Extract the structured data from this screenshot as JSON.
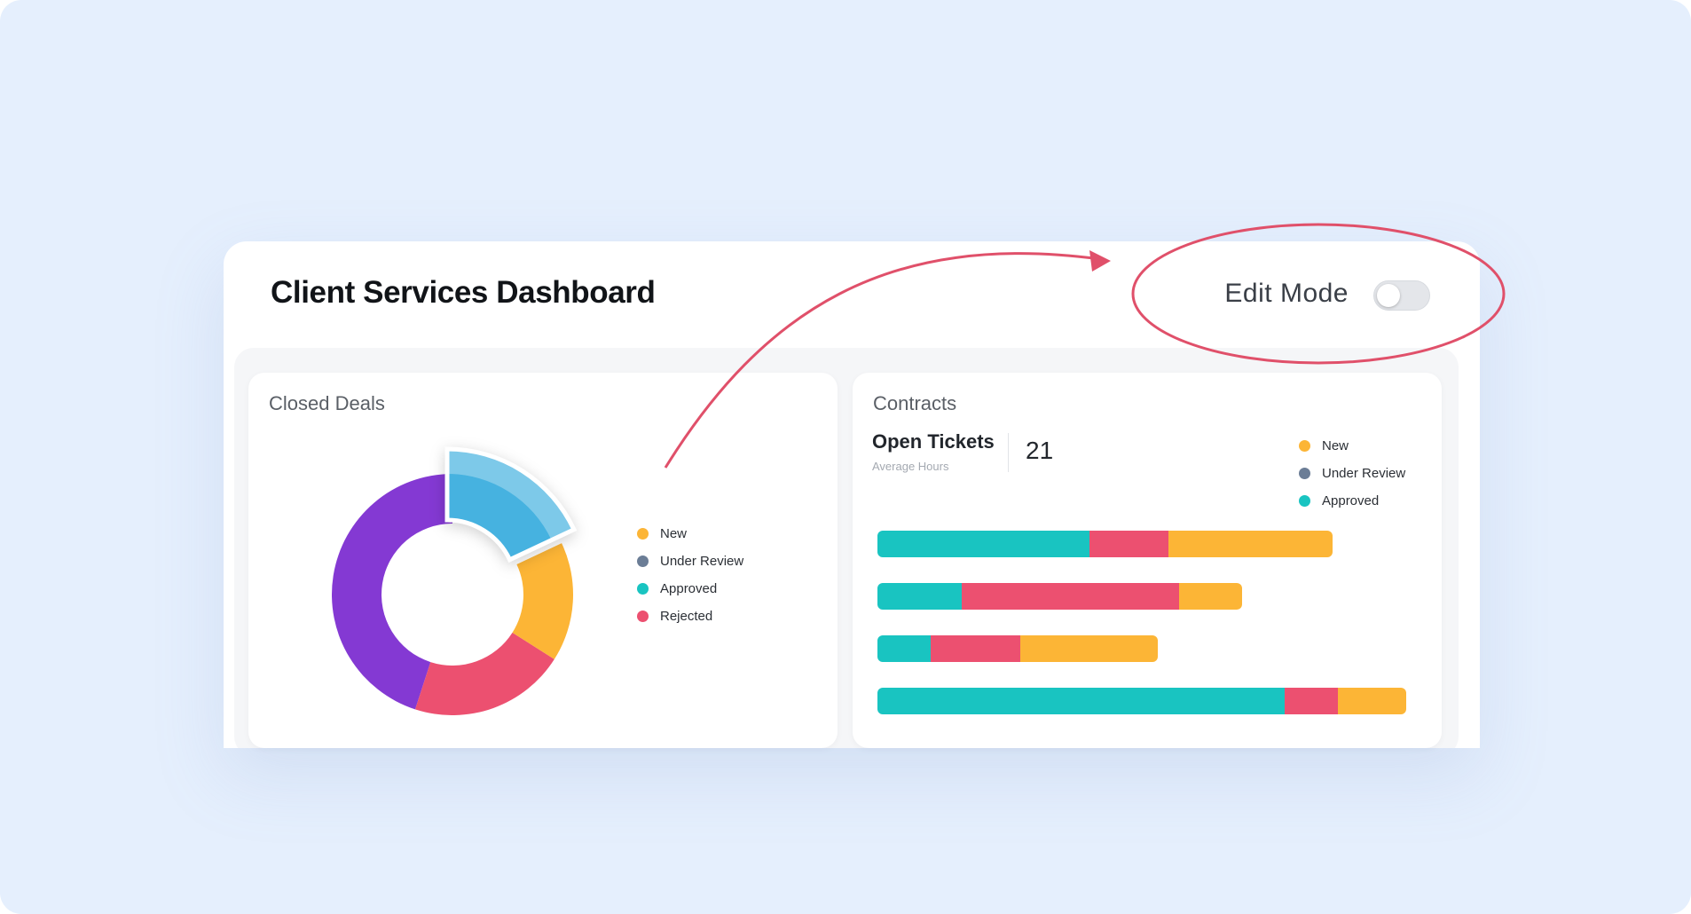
{
  "header": {
    "title": "Client Services Dashboard",
    "edit_mode_label": "Edit Mode",
    "edit_mode_on": false
  },
  "colors": {
    "new": "#fcb536",
    "under_review": "#6b7d96",
    "approved": "#19c4c1",
    "rejected": "#ec5070",
    "purple": "#8439d3",
    "highlight_blue": "#46b2e0",
    "annotation": "#e0506a"
  },
  "closed_deals": {
    "title": "Closed Deals",
    "legend": [
      {
        "label": "New",
        "color": "#fcb536"
      },
      {
        "label": "Under Review",
        "color": "#6b7d96"
      },
      {
        "label": "Approved",
        "color": "#19c4c1"
      },
      {
        "label": "Rejected",
        "color": "#ec5070"
      }
    ]
  },
  "contracts": {
    "title": "Contracts",
    "ticket_title": "Open Tickets",
    "ticket_sub": "Average Hours",
    "ticket_value": "21",
    "legend": [
      {
        "label": "New",
        "color": "#fcb536"
      },
      {
        "label": "Under Review",
        "color": "#6b7d96"
      },
      {
        "label": "Approved",
        "color": "#19c4c1"
      }
    ]
  },
  "chart_data": [
    {
      "type": "pie",
      "variant": "donut",
      "segments": [
        {
          "value": 18,
          "color": "#46b2e0",
          "highlighted": true
        },
        {
          "value": 16,
          "color": "#fcb536"
        },
        {
          "value": 21,
          "color": "#ec5070"
        },
        {
          "value": 45,
          "color": "#8439d3"
        }
      ]
    },
    {
      "type": "bar",
      "orientation": "horizontal",
      "stacked": true,
      "max": 100,
      "rows": [
        [
          {
            "value": 40,
            "color": "#19c4c1"
          },
          {
            "value": 15,
            "color": "#ec5070"
          },
          {
            "value": 31,
            "color": "#fcb536"
          }
        ],
        [
          {
            "value": 16,
            "color": "#19c4c1"
          },
          {
            "value": 41,
            "color": "#ec5070"
          },
          {
            "value": 12,
            "color": "#fcb536"
          }
        ],
        [
          {
            "value": 10,
            "color": "#19c4c1"
          },
          {
            "value": 17,
            "color": "#ec5070"
          },
          {
            "value": 26,
            "color": "#fcb536"
          }
        ],
        [
          {
            "value": 77,
            "color": "#19c4c1"
          },
          {
            "value": 10,
            "color": "#ec5070"
          },
          {
            "value": 13,
            "color": "#fcb536"
          }
        ]
      ]
    }
  ]
}
